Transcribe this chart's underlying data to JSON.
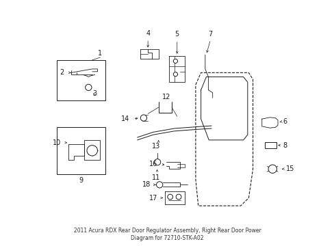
{
  "bg_color": "#ffffff",
  "line_color": "#1a1a1a",
  "fig_width": 4.89,
  "fig_height": 3.6,
  "dpi": 100,
  "title": "2011 Acura RDX Rear Door Regulator Assembly, Right Rear Door Power\nDiagram for 72710-STK-A02"
}
